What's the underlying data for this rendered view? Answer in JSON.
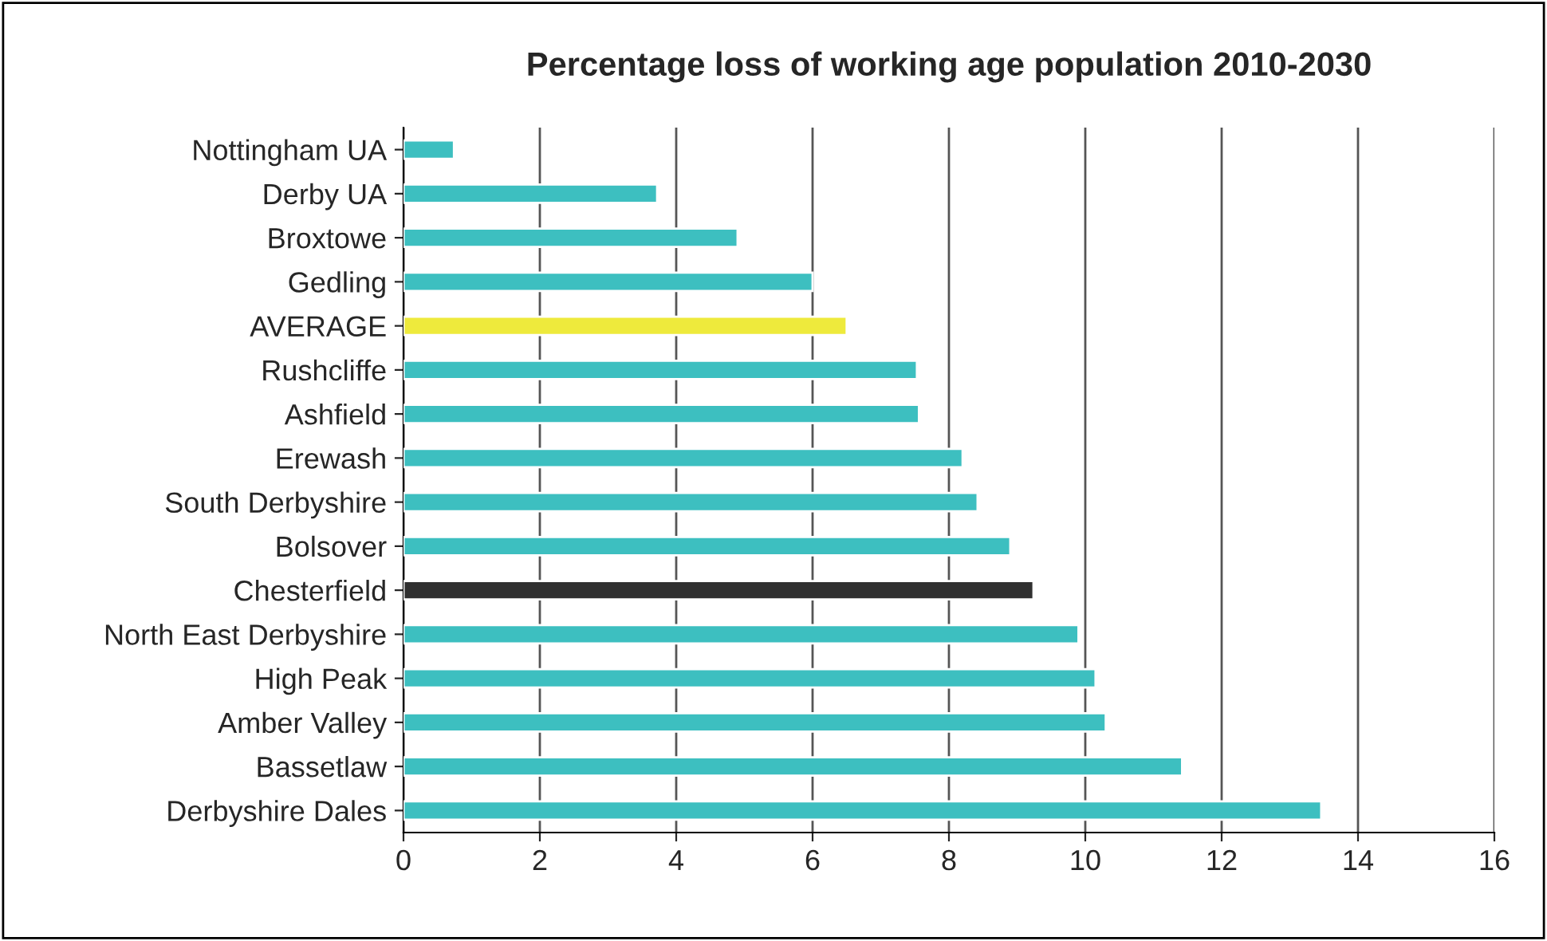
{
  "chart_data": {
    "type": "bar",
    "orientation": "horizontal",
    "title": "Percentage loss of working age population 2010-2030",
    "categories": [
      "Nottingham UA",
      "Derby UA",
      "Broxtowe",
      "Gedling",
      "AVERAGE",
      "Rushcliffe",
      "Ashfield",
      "Erewash",
      "South Derbyshire",
      "Bolsover",
      "Chesterfield",
      "North East Derbyshire",
      "High Peak",
      "Amber Valley",
      "Bassetlaw",
      "Derbyshire Dales"
    ],
    "values": [
      0.74,
      3.72,
      4.9,
      6.0,
      6.5,
      7.53,
      7.56,
      8.2,
      8.42,
      8.9,
      9.24,
      9.9,
      10.15,
      10.3,
      11.42,
      13.46
    ],
    "colors": [
      "#3dbfc0",
      "#3dbfc0",
      "#3dbfc0",
      "#3dbfc0",
      "#eeea3c",
      "#3dbfc0",
      "#3dbfc0",
      "#3dbfc0",
      "#3dbfc0",
      "#3dbfc0",
      "#303030",
      "#3dbfc0",
      "#3dbfc0",
      "#3dbfc0",
      "#3dbfc0",
      "#3dbfc0"
    ],
    "xlim": [
      0,
      16
    ],
    "xticks": [
      0,
      2,
      4,
      6,
      8,
      10,
      12,
      14,
      16
    ],
    "grid": "x",
    "legend": false
  }
}
